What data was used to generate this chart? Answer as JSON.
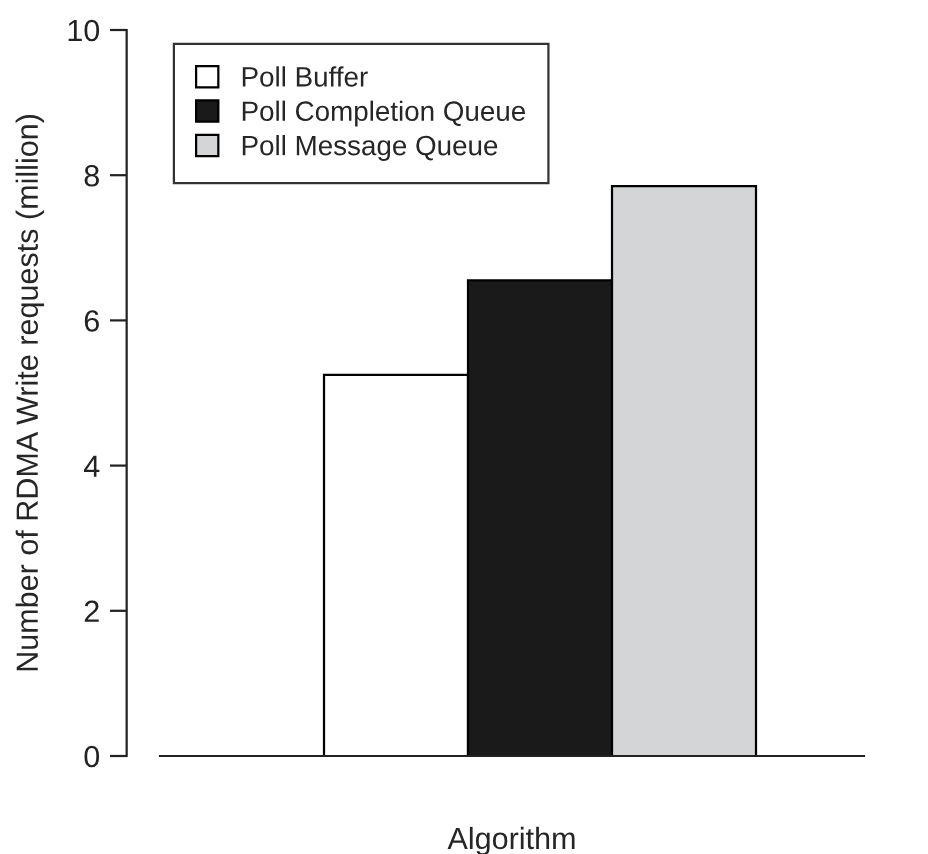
{
  "chart_data": {
    "type": "bar",
    "categories": [
      null
    ],
    "xlabel": "Algorithm",
    "ylabel": "Number of RDMA Write requests (million)",
    "ylim": [
      0,
      10
    ],
    "yticks": [
      0,
      2,
      4,
      6,
      8,
      10
    ],
    "legend": "top left",
    "grid": false,
    "series": [
      {
        "name": "Poll Buffer",
        "color": "#ffffff",
        "values": [
          5.25
        ]
      },
      {
        "name": "Poll Completion Queue",
        "color": "#1a1a1a",
        "values": [
          6.55
        ]
      },
      {
        "name": "Poll Message Queue",
        "color": "#d4d5d7",
        "values": [
          7.85
        ]
      }
    ]
  }
}
